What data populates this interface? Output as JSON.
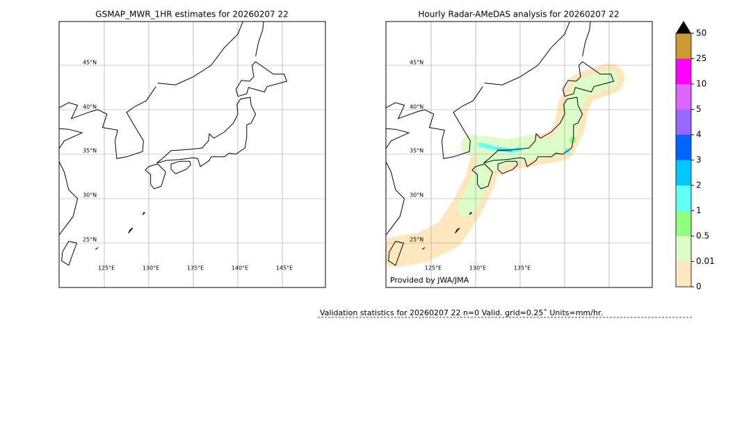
{
  "panels": [
    {
      "title": "GSMAP_MWR_1HR estimates for 20260207 22",
      "lat_labels": [
        "45°N",
        "40°N",
        "35°N",
        "30°N",
        "25°N"
      ],
      "lon_labels": [
        "125°E",
        "130°E",
        "135°E",
        "140°E",
        "145°E"
      ]
    },
    {
      "title": "Hourly Radar-AMeDAS analysis for 20260207 22",
      "lat_labels": [
        "45°N",
        "40°N",
        "35°N",
        "30°N",
        "25°N"
      ],
      "lon_labels": [
        "125°E",
        "130°E",
        "135°E"
      ],
      "credit": "Provided by JWA/JMA"
    }
  ],
  "colorbar": {
    "labels": [
      "0",
      "0.01",
      "0.5",
      "1",
      "2",
      "3",
      "4",
      "5",
      "10",
      "25",
      "50"
    ],
    "colors": [
      "#fee6bd",
      "#dcfcc8",
      "#90ff80",
      "#60fff8",
      "#00c8ff",
      "#0064ff",
      "#9966ff",
      "#dd66ff",
      "#ff00ff",
      "#cc9933"
    ]
  },
  "footer": "Validation statistics for 20260207 22  n=0 Valid. grid=0.25˚ Units=mm/hr."
}
